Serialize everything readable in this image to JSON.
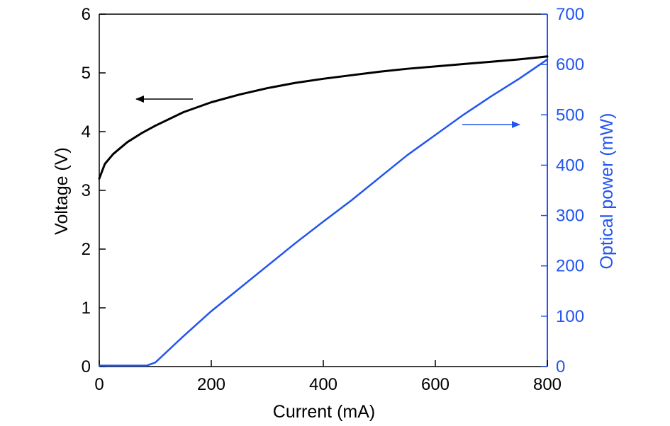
{
  "chart_data": {
    "type": "line",
    "xlabel": "Current (mA)",
    "ylabel_left": "Voltage (V)",
    "ylabel_right": "Optical power (mW)",
    "xlim": [
      0,
      800
    ],
    "ylim_left": [
      0,
      6
    ],
    "ylim_right": [
      0,
      700
    ],
    "x_ticks": [
      0,
      200,
      400,
      600,
      800
    ],
    "y_left_ticks": [
      0,
      1,
      2,
      3,
      4,
      5,
      6
    ],
    "y_right_ticks": [
      0,
      100,
      200,
      300,
      400,
      500,
      600,
      700
    ],
    "grid": false,
    "colors": {
      "voltage": "#000000",
      "power": "#2255ee",
      "axis_right": "#2255ee",
      "axis_left": "#000000"
    },
    "series": [
      {
        "axis": "left",
        "color": "#000000",
        "x": [
          0,
          10,
          25,
          50,
          75,
          100,
          150,
          200,
          250,
          300,
          350,
          400,
          450,
          500,
          550,
          600,
          650,
          700,
          750,
          800
        ],
        "values": [
          3.2,
          3.45,
          3.62,
          3.82,
          3.97,
          4.1,
          4.33,
          4.5,
          4.63,
          4.74,
          4.83,
          4.9,
          4.96,
          5.02,
          5.07,
          5.11,
          5.15,
          5.19,
          5.23,
          5.28
        ]
      },
      {
        "axis": "right",
        "color": "#2255ee",
        "x": [
          0,
          50,
          85,
          100,
          150,
          200,
          250,
          300,
          350,
          400,
          450,
          500,
          550,
          600,
          650,
          700,
          750,
          800
        ],
        "values": [
          2,
          2,
          2,
          8,
          60,
          110,
          155,
          200,
          245,
          288,
          330,
          375,
          420,
          460,
          500,
          537,
          572,
          610
        ]
      }
    ],
    "annotations": [
      {
        "type": "arrow",
        "direction": "left",
        "points_to": "left-axis",
        "color": "#000000"
      },
      {
        "type": "arrow",
        "direction": "right",
        "points_to": "right-axis",
        "color": "#2255ee"
      }
    ]
  }
}
